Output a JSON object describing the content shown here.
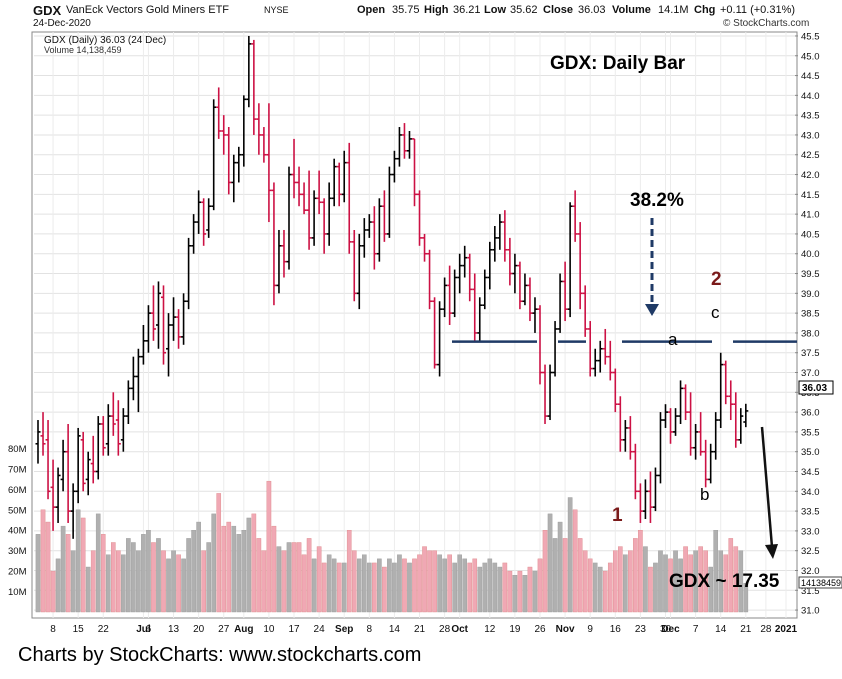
{
  "header": {
    "symbol": "GDX",
    "name": "VanEck Vectors Gold Miners ETF",
    "exchange": "NYSE",
    "date": "24-Dec-2020",
    "open_label": "Open",
    "open": "35.75",
    "high_label": "High",
    "high": "36.21",
    "low_label": "Low",
    "low": "35.62",
    "close_label": "Close",
    "close": "36.03",
    "volume_label": "Volume",
    "volume": "14.1M",
    "chg_label": "Chg",
    "chg": "+0.11 (+0.31%)",
    "copyright": "© StockCharts.com"
  },
  "legend": {
    "price": "GDX (Daily) 36.03 (24 Dec)",
    "volume": "Volume 14,138,459"
  },
  "footer": {
    "credit": "Charts by StockCharts:  www.stockcharts.com"
  },
  "colors": {
    "up": "#000000",
    "down": "#cc1144",
    "vol_up": "#b0b0b0",
    "vol_down": "#f0a8b4",
    "line": "#1f3a66",
    "arrow": "#1f3a66",
    "wave": "#7a1a1a"
  },
  "chart_data": {
    "type": "bar",
    "title": "GDX:  Daily Bar",
    "ylim": [
      30.8,
      45.6
    ],
    "vol_ylim": [
      0,
      90
    ],
    "y_ticks": [
      31.0,
      31.5,
      32.0,
      32.5,
      33.0,
      33.5,
      34.0,
      34.5,
      35.0,
      35.5,
      36.0,
      36.5,
      37.0,
      37.5,
      38.0,
      38.5,
      39.0,
      39.5,
      40.0,
      40.5,
      41.0,
      41.5,
      42.0,
      42.5,
      43.0,
      43.5,
      44.0,
      44.5,
      45.0,
      45.5
    ],
    "vol_ticks": [
      {
        "v": 10,
        "label": "10M"
      },
      {
        "v": 20,
        "label": "20M"
      },
      {
        "v": 30,
        "label": "30M"
      },
      {
        "v": 40,
        "label": "40M"
      },
      {
        "v": 50,
        "label": "50M"
      },
      {
        "v": 60,
        "label": "60M"
      },
      {
        "v": 70,
        "label": "70M"
      },
      {
        "v": 80,
        "label": "80M"
      }
    ],
    "x_ticks": [
      {
        "i": 3,
        "label": "8"
      },
      {
        "i": 8,
        "label": "15"
      },
      {
        "i": 13,
        "label": "22"
      },
      {
        "i": 21,
        "label": "Jul"
      },
      {
        "i": 22,
        "label": "6"
      },
      {
        "i": 27,
        "label": "13"
      },
      {
        "i": 32,
        "label": "20"
      },
      {
        "i": 37,
        "label": "27"
      },
      {
        "i": 41,
        "label": "Aug"
      },
      {
        "i": 46,
        "label": "10"
      },
      {
        "i": 51,
        "label": "17"
      },
      {
        "i": 56,
        "label": "24"
      },
      {
        "i": 61,
        "label": "Sep"
      },
      {
        "i": 66,
        "label": "8"
      },
      {
        "i": 71,
        "label": "14"
      },
      {
        "i": 76,
        "label": "21"
      },
      {
        "i": 81,
        "label": "28"
      },
      {
        "i": 84,
        "label": "Oct"
      },
      {
        "i": 90,
        "label": "12"
      },
      {
        "i": 95,
        "label": "19"
      },
      {
        "i": 100,
        "label": "26"
      },
      {
        "i": 105,
        "label": "Nov"
      },
      {
        "i": 110,
        "label": "9"
      },
      {
        "i": 115,
        "label": "16"
      },
      {
        "i": 120,
        "label": "23"
      },
      {
        "i": 125,
        "label": "30"
      },
      {
        "i": 126,
        "label": "Dec"
      },
      {
        "i": 131,
        "label": "7"
      },
      {
        "i": 136,
        "label": "14"
      },
      {
        "i": 141,
        "label": "21"
      },
      {
        "i": 145,
        "label": "28"
      },
      {
        "i": 149,
        "label": "2021"
      }
    ],
    "x_last_index": 150,
    "bars": [
      [
        35.2,
        35.8,
        34.7,
        35.5,
        38
      ],
      [
        35.4,
        36.0,
        34.9,
        35.2,
        50
      ],
      [
        35.3,
        35.8,
        33.8,
        34.0,
        44
      ],
      [
        34.1,
        34.8,
        33.0,
        33.6,
        20
      ],
      [
        33.6,
        34.6,
        33.2,
        34.4,
        26
      ],
      [
        34.3,
        35.3,
        34.0,
        35.0,
        42
      ],
      [
        35.0,
        35.7,
        33.2,
        33.5,
        38
      ],
      [
        33.5,
        34.2,
        32.8,
        34.0,
        30
      ],
      [
        34.0,
        35.6,
        33.7,
        35.4,
        50
      ],
      [
        35.3,
        35.5,
        34.0,
        34.2,
        46
      ],
      [
        34.3,
        35.0,
        33.9,
        34.8,
        22
      ],
      [
        34.7,
        35.4,
        34.2,
        34.5,
        30
      ],
      [
        34.5,
        35.9,
        34.3,
        35.7,
        48
      ],
      [
        35.7,
        35.9,
        34.9,
        35.1,
        38
      ],
      [
        35.2,
        36.2,
        34.9,
        35.9,
        28
      ],
      [
        35.9,
        36.5,
        35.4,
        35.7,
        34
      ],
      [
        35.8,
        36.3,
        34.9,
        35.2,
        30
      ],
      [
        35.3,
        36.1,
        35.0,
        35.9,
        28
      ],
      [
        35.9,
        36.8,
        35.7,
        36.6,
        36
      ],
      [
        36.6,
        37.4,
        36.3,
        36.9,
        34
      ],
      [
        36.9,
        37.6,
        36.0,
        37.4,
        30
      ],
      [
        37.4,
        38.2,
        37.2,
        37.8,
        38
      ],
      [
        37.8,
        38.7,
        37.5,
        38.5,
        40
      ],
      [
        38.5,
        39.2,
        37.8,
        38.1,
        34
      ],
      [
        38.2,
        39.3,
        37.6,
        39.0,
        36
      ],
      [
        38.9,
        39.2,
        37.2,
        37.5,
        30
      ],
      [
        37.6,
        38.5,
        36.9,
        38.2,
        26
      ],
      [
        38.2,
        38.9,
        37.8,
        38.4,
        30
      ],
      [
        38.4,
        38.6,
        37.6,
        37.9,
        28
      ],
      [
        37.9,
        39.0,
        37.7,
        38.8,
        26
      ],
      [
        38.8,
        40.4,
        38.6,
        40.2,
        36
      ],
      [
        40.2,
        41.0,
        40.0,
        40.8,
        40
      ],
      [
        40.8,
        41.6,
        40.5,
        41.3,
        44
      ],
      [
        41.3,
        41.4,
        40.2,
        40.5,
        30
      ],
      [
        40.6,
        41.4,
        40.4,
        41.2,
        34
      ],
      [
        41.2,
        43.9,
        41.1,
        43.7,
        48
      ],
      [
        43.7,
        44.2,
        42.9,
        43.1,
        58
      ],
      [
        43.1,
        43.5,
        42.5,
        43.0,
        42
      ],
      [
        43.0,
        43.2,
        41.5,
        41.8,
        44
      ],
      [
        41.8,
        42.5,
        41.3,
        42.3,
        42
      ],
      [
        42.3,
        42.7,
        41.8,
        42.5,
        38
      ],
      [
        42.5,
        44.0,
        42.2,
        43.9,
        40
      ],
      [
        43.9,
        45.5,
        43.7,
        45.3,
        46
      ],
      [
        45.3,
        45.4,
        43.0,
        43.4,
        48
      ],
      [
        43.4,
        43.8,
        42.5,
        43.0,
        36
      ],
      [
        43.0,
        43.2,
        42.3,
        42.5,
        30
      ],
      [
        42.5,
        43.8,
        40.8,
        41.6,
        64
      ],
      [
        41.6,
        41.8,
        38.7,
        39.2,
        42
      ],
      [
        39.2,
        40.6,
        39.0,
        40.2,
        32
      ],
      [
        40.2,
        40.6,
        39.4,
        39.8,
        30
      ],
      [
        39.8,
        42.2,
        39.6,
        42.0,
        34
      ],
      [
        42.0,
        42.9,
        41.4,
        41.8,
        34
      ],
      [
        41.8,
        42.2,
        41.2,
        41.5,
        34
      ],
      [
        41.5,
        41.8,
        41.0,
        41.1,
        28
      ],
      [
        41.1,
        42.1,
        40.1,
        40.4,
        36
      ],
      [
        40.4,
        41.6,
        40.2,
        41.4,
        26
      ],
      [
        41.4,
        42.1,
        41.0,
        41.3,
        32
      ],
      [
        41.3,
        41.4,
        40.0,
        40.5,
        24
      ],
      [
        40.5,
        41.8,
        40.2,
        41.4,
        28
      ],
      [
        41.4,
        42.4,
        41.2,
        42.2,
        26
      ],
      [
        42.2,
        42.3,
        41.2,
        41.5,
        24
      ],
      [
        41.5,
        42.6,
        41.3,
        42.3,
        24
      ],
      [
        42.3,
        42.8,
        40.0,
        40.3,
        40
      ],
      [
        40.3,
        40.6,
        38.8,
        39.0,
        30
      ],
      [
        39.0,
        40.5,
        38.6,
        40.2,
        26
      ],
      [
        40.2,
        40.9,
        39.9,
        40.6,
        28
      ],
      [
        40.6,
        41.0,
        40.4,
        40.8,
        24
      ],
      [
        40.8,
        41.2,
        39.6,
        40.0,
        24
      ],
      [
        40.0,
        41.4,
        39.8,
        41.2,
        26
      ],
      [
        41.2,
        41.6,
        40.3,
        40.5,
        22
      ],
      [
        40.5,
        42.2,
        40.4,
        42.0,
        26
      ],
      [
        42.0,
        42.6,
        41.8,
        42.4,
        24
      ],
      [
        42.4,
        43.2,
        42.2,
        43.0,
        28
      ],
      [
        43.0,
        43.3,
        42.4,
        42.6,
        26
      ],
      [
        42.6,
        43.1,
        42.4,
        42.9,
        24
      ],
      [
        42.9,
        42.9,
        41.2,
        41.5,
        26
      ],
      [
        41.5,
        41.6,
        40.2,
        40.4,
        28
      ],
      [
        40.4,
        40.5,
        39.8,
        40.0,
        32
      ],
      [
        40.0,
        40.1,
        38.6,
        38.8,
        30
      ],
      [
        38.8,
        38.9,
        37.1,
        37.2,
        30
      ],
      [
        37.2,
        38.8,
        36.9,
        38.6,
        28
      ],
      [
        38.6,
        39.4,
        38.4,
        39.2,
        26
      ],
      [
        39.2,
        39.7,
        38.2,
        38.5,
        28
      ],
      [
        38.5,
        39.6,
        38.4,
        39.4,
        24
      ],
      [
        39.4,
        40.0,
        39.0,
        39.7,
        28
      ],
      [
        39.7,
        40.2,
        39.4,
        39.9,
        26
      ],
      [
        39.9,
        40.0,
        38.8,
        39.1,
        24
      ],
      [
        39.1,
        39.5,
        37.8,
        38.0,
        26
      ],
      [
        38.0,
        38.9,
        37.8,
        38.7,
        22
      ],
      [
        38.7,
        39.6,
        38.6,
        39.4,
        24
      ],
      [
        39.4,
        40.3,
        39.1,
        40.1,
        26
      ],
      [
        40.1,
        40.7,
        39.8,
        40.4,
        24
      ],
      [
        40.4,
        41.0,
        40.1,
        40.8,
        22
      ],
      [
        40.8,
        41.1,
        39.8,
        40.1,
        24
      ],
      [
        40.1,
        40.4,
        39.2,
        39.5,
        20
      ],
      [
        39.5,
        40.0,
        39.0,
        39.7,
        18
      ],
      [
        39.7,
        39.8,
        38.6,
        38.8,
        20
      ],
      [
        38.8,
        39.5,
        38.7,
        39.2,
        18
      ],
      [
        39.2,
        39.4,
        38.3,
        38.5,
        22
      ],
      [
        38.5,
        38.9,
        38.0,
        38.6,
        20
      ],
      [
        38.6,
        38.7,
        36.7,
        37.0,
        26
      ],
      [
        37.0,
        37.2,
        35.7,
        35.9,
        40
      ],
      [
        35.9,
        37.2,
        35.8,
        37.0,
        48
      ],
      [
        37.0,
        38.3,
        36.9,
        38.1,
        36
      ],
      [
        38.1,
        39.5,
        38.0,
        39.3,
        44
      ],
      [
        39.3,
        39.8,
        38.3,
        38.6,
        36
      ],
      [
        38.6,
        41.3,
        38.4,
        41.2,
        56
      ],
      [
        41.2,
        41.6,
        40.3,
        40.5,
        50
      ],
      [
        40.5,
        40.8,
        38.6,
        39.0,
        36
      ],
      [
        39.0,
        39.2,
        37.9,
        38.1,
        30
      ],
      [
        38.1,
        38.3,
        36.9,
        37.1,
        26
      ],
      [
        37.1,
        37.6,
        36.9,
        37.3,
        24
      ],
      [
        37.3,
        37.8,
        37.0,
        37.6,
        22
      ],
      [
        37.6,
        38.1,
        37.2,
        37.4,
        20
      ],
      [
        37.4,
        37.8,
        36.8,
        37.0,
        24
      ],
      [
        37.0,
        37.1,
        36.0,
        36.2,
        30
      ],
      [
        36.2,
        36.4,
        35.0,
        35.3,
        32
      ],
      [
        35.3,
        35.8,
        35.0,
        35.6,
        28
      ],
      [
        35.6,
        35.9,
        34.8,
        35.0,
        30
      ],
      [
        35.0,
        35.2,
        33.8,
        34.0,
        36
      ],
      [
        34.0,
        34.2,
        33.2,
        33.5,
        40
      ],
      [
        33.5,
        34.3,
        33.3,
        34.0,
        32
      ],
      [
        34.0,
        34.5,
        33.2,
        33.6,
        22
      ],
      [
        33.6,
        34.6,
        33.5,
        34.4,
        24
      ],
      [
        34.4,
        36.0,
        34.2,
        35.8,
        30
      ],
      [
        35.8,
        36.2,
        35.6,
        36.0,
        28
      ],
      [
        36.0,
        36.1,
        35.2,
        35.5,
        26
      ],
      [
        35.5,
        36.1,
        35.4,
        35.9,
        30
      ],
      [
        35.9,
        36.8,
        35.7,
        36.6,
        26
      ],
      [
        36.6,
        36.7,
        35.8,
        36.0,
        32
      ],
      [
        36.0,
        36.5,
        34.9,
        35.1,
        28
      ],
      [
        35.1,
        35.7,
        34.8,
        35.5,
        30
      ],
      [
        35.5,
        36.0,
        34.9,
        35.0,
        32
      ],
      [
        35.0,
        35.3,
        34.1,
        34.3,
        30
      ],
      [
        34.3,
        35.2,
        34.2,
        35.0,
        22
      ],
      [
        35.0,
        36.0,
        34.8,
        35.8,
        40
      ],
      [
        35.8,
        37.5,
        35.6,
        37.2,
        30
      ],
      [
        37.2,
        37.3,
        36.2,
        36.4,
        28
      ],
      [
        36.4,
        36.8,
        35.8,
        36.2,
        36
      ],
      [
        36.2,
        36.5,
        35.1,
        35.3,
        32
      ],
      [
        35.3,
        36.1,
        35.2,
        35.9,
        30
      ],
      [
        35.75,
        36.21,
        35.62,
        36.03,
        14.1
      ]
    ],
    "annotations": [
      {
        "id": "pct",
        "text": "38.2%"
      },
      {
        "id": "w2",
        "text": "2"
      },
      {
        "id": "wc",
        "text": "c"
      },
      {
        "id": "wa",
        "text": "a"
      },
      {
        "id": "wb",
        "text": "b"
      },
      {
        "id": "w1",
        "text": "1"
      },
      {
        "id": "target",
        "text": "GDX ~ 17.35"
      }
    ],
    "level": 37.78,
    "last_label": "36.03",
    "vol_last_label": "14138459"
  }
}
